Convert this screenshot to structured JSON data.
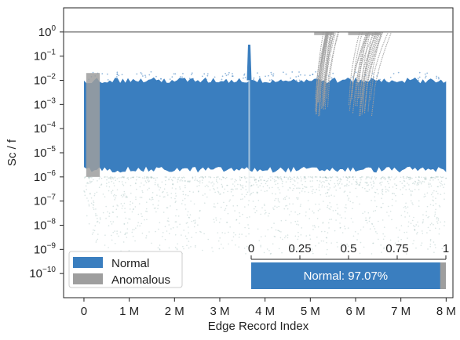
{
  "chart_data": {
    "type": "scatter",
    "xlabel": "Edge Record Index",
    "ylabel": "Sc / f",
    "xlim": [
      -0.45,
      8.15
    ],
    "ylim": [
      1e-11,
      10
    ],
    "y_scale": "log",
    "x_ticks": [
      0,
      1,
      2,
      3,
      4,
      5,
      6,
      7,
      8
    ],
    "x_tick_labels": [
      "0",
      "1 M",
      "2 M",
      "3 M",
      "4 M",
      "5 M",
      "6 M",
      "7 M",
      "8 M"
    ],
    "y_tick_exponents": [
      0,
      -1,
      -2,
      -3,
      -4,
      -5,
      -6,
      -7,
      -8,
      -9,
      -10
    ],
    "threshold_y": 1,
    "legend": {
      "position": "lower-left",
      "entries": [
        {
          "label": "Normal",
          "color": "#3a7ebf"
        },
        {
          "label": "Anomalous",
          "color": "#9e9e9e"
        }
      ]
    },
    "normal_band": {
      "x_range": [
        0,
        8.0
      ],
      "upper_y": 0.01,
      "lower_y": 1e-06,
      "spike": {
        "x": 3.65,
        "y": 0.3
      }
    },
    "anomalous_regions": [
      {
        "x_range": [
          0.05,
          0.35
        ],
        "y_range": [
          1e-06,
          0.02
        ]
      },
      {
        "x_range": [
          5.05,
          5.55
        ],
        "y_range": [
          0.0003,
          1
        ]
      },
      {
        "x_range": [
          5.8,
          6.6
        ],
        "y_range": [
          0.0003,
          1
        ]
      }
    ],
    "proportion_inset": {
      "ticks": [
        0,
        0.25,
        0.5,
        0.75,
        1
      ],
      "tick_labels": [
        "0",
        "0.25",
        "0.5",
        "0.75",
        "1"
      ],
      "normal_fraction": 0.9707,
      "label": "Normal: 97.07%"
    },
    "colors": {
      "normal": "#3a7ebf",
      "anomalous": "#9e9e9e",
      "sparse": "#8fb3b0",
      "threshold": "#777777"
    }
  }
}
